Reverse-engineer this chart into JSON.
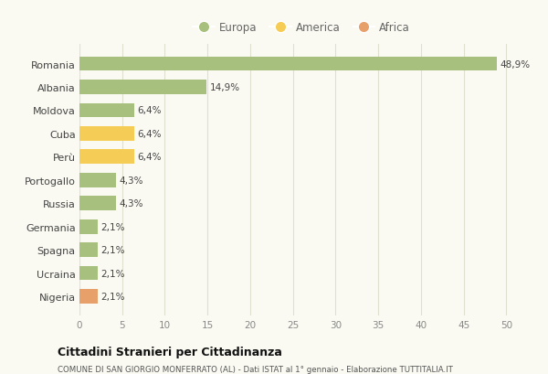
{
  "countries": [
    "Romania",
    "Albania",
    "Moldova",
    "Cuba",
    "Perù",
    "Portogallo",
    "Russia",
    "Germania",
    "Spagna",
    "Ucraina",
    "Nigeria"
  ],
  "values": [
    48.9,
    14.9,
    6.4,
    6.4,
    6.4,
    4.3,
    4.3,
    2.1,
    2.1,
    2.1,
    2.1
  ],
  "labels": [
    "48,9%",
    "14,9%",
    "6,4%",
    "6,4%",
    "6,4%",
    "4,3%",
    "4,3%",
    "2,1%",
    "2,1%",
    "2,1%",
    "2,1%"
  ],
  "continents": [
    "Europa",
    "Europa",
    "Europa",
    "America",
    "America",
    "Europa",
    "Europa",
    "Europa",
    "Europa",
    "Europa",
    "Africa"
  ],
  "colors": {
    "Europa": "#a8c07e",
    "America": "#f5cc55",
    "Africa": "#e8a06a"
  },
  "xlim": [
    0,
    52
  ],
  "xticks": [
    0,
    5,
    10,
    15,
    20,
    25,
    30,
    35,
    40,
    45,
    50
  ],
  "title": "Cittadini Stranieri per Cittadinanza",
  "subtitle": "COMUNE DI SAN GIORGIO MONFERRATO (AL) - Dati ISTAT al 1° gennaio - Elaborazione TUTTITALIA.IT",
  "bg_color": "#fafaf2",
  "grid_color": "#e0e0d0",
  "bar_height": 0.62
}
